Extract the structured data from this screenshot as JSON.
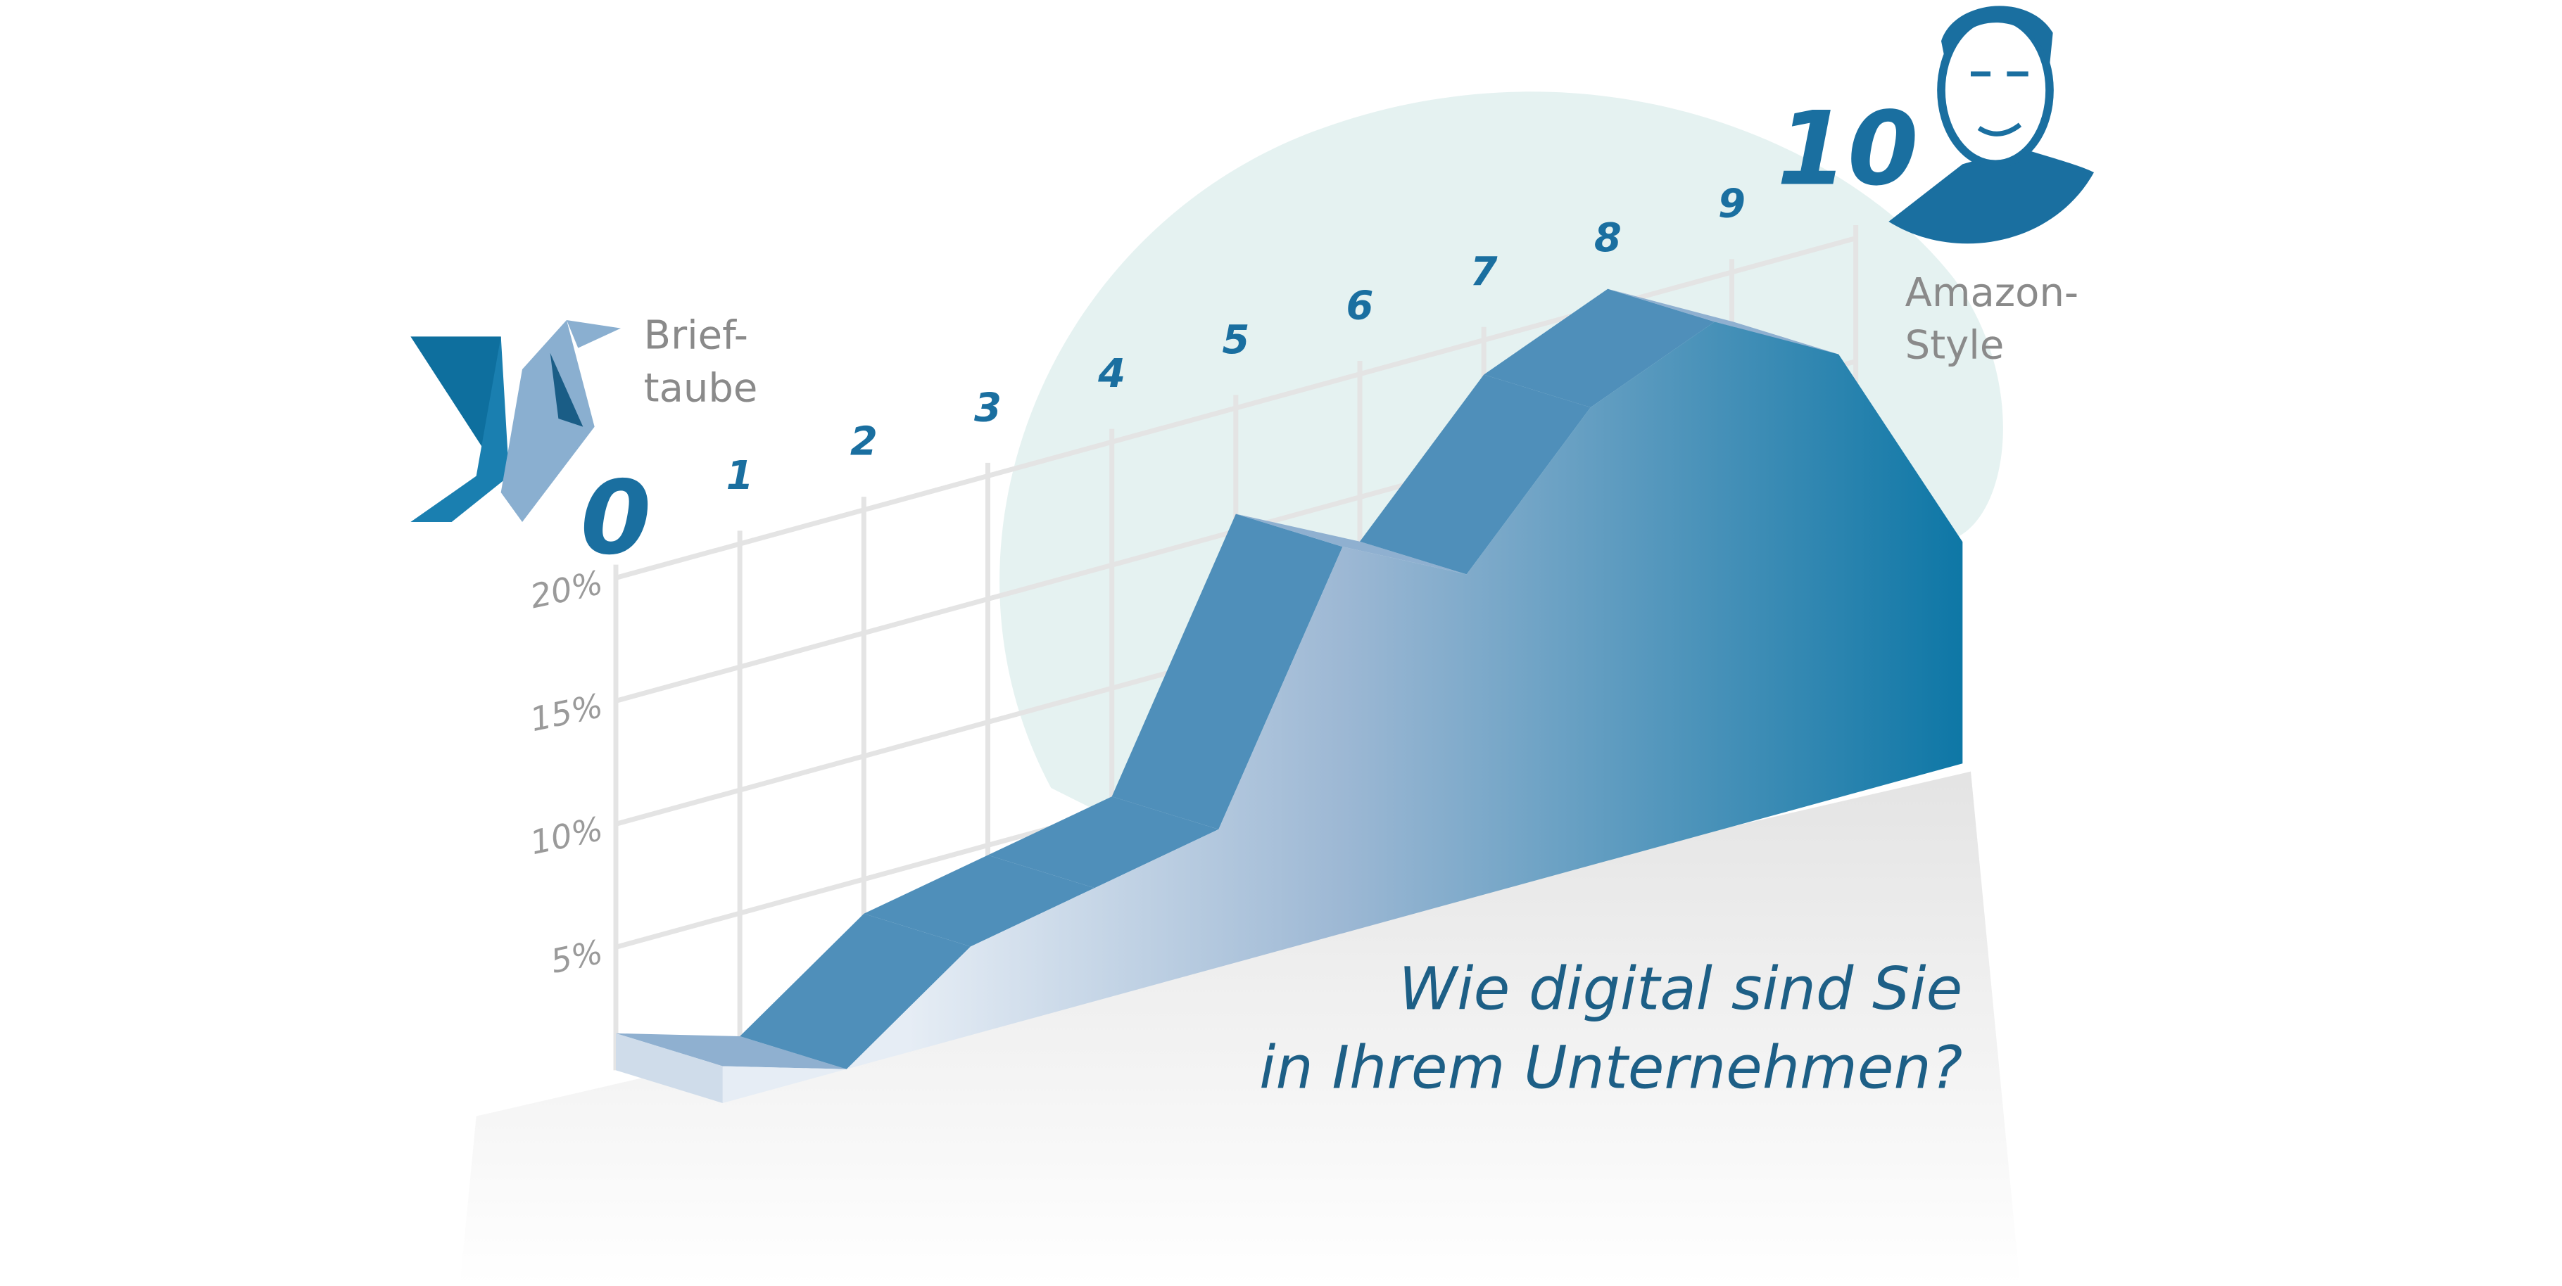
{
  "chart_data": {
    "type": "area3d",
    "categories": [
      "0",
      "1",
      "2",
      "3",
      "4",
      "5",
      "6",
      "7",
      "8",
      "9",
      "10"
    ],
    "values": [
      1.5,
      0,
      3.6,
      4.6,
      5.6,
      15.7,
      13.2,
      18.6,
      20.7,
      18,
      9
    ],
    "color": "#0e77a6",
    "ylim": [
      0,
      20
    ],
    "yticks": [
      {
        "value": 5,
        "label": "5%"
      },
      {
        "value": 10,
        "label": "10%"
      },
      {
        "value": 15,
        "label": "15%"
      },
      {
        "value": 20,
        "label": "20%"
      }
    ],
    "grid": true,
    "start_label": "Brief-taube",
    "end_label": "Amazon-Style",
    "question": [
      "Wie digital sind Sie",
      "in Ihrem Unternehmen?"
    ]
  }
}
